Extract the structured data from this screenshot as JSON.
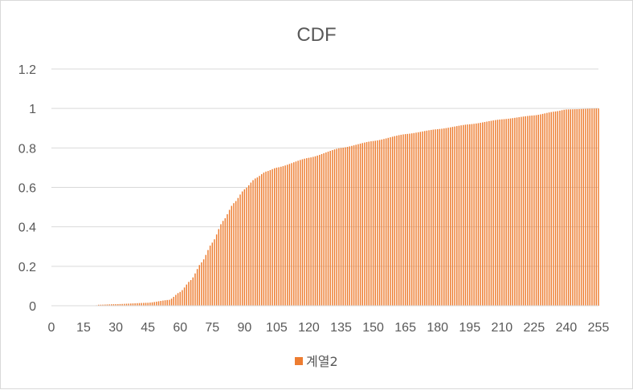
{
  "chart_data": {
    "type": "bar",
    "title": "CDF",
    "xlabel": "",
    "ylabel": "",
    "x_range": [
      0,
      255
    ],
    "ylim": [
      0,
      1.2
    ],
    "x_ticks": [
      0,
      15,
      30,
      45,
      60,
      75,
      90,
      105,
      120,
      135,
      150,
      165,
      180,
      195,
      210,
      225,
      240,
      255
    ],
    "y_ticks": [
      "0",
      "0.2",
      "0.4",
      "0.6",
      "0.8",
      "1",
      "1.2"
    ],
    "grid": true,
    "legend_position": "bottom",
    "series": [
      {
        "name": "계열2",
        "color": "#ed7d31",
        "note_points": "x positions 0..255, values estimated from gridlines",
        "key_points": [
          [
            0,
            0
          ],
          [
            15,
            0
          ],
          [
            20,
            0
          ],
          [
            22,
            0.005
          ],
          [
            30,
            0.008
          ],
          [
            45,
            0.015
          ],
          [
            55,
            0.03
          ],
          [
            60,
            0.07
          ],
          [
            65,
            0.13
          ],
          [
            70,
            0.22
          ],
          [
            75,
            0.32
          ],
          [
            80,
            0.43
          ],
          [
            85,
            0.52
          ],
          [
            90,
            0.59
          ],
          [
            95,
            0.645
          ],
          [
            100,
            0.68
          ],
          [
            105,
            0.7
          ],
          [
            120,
            0.75
          ],
          [
            135,
            0.8
          ],
          [
            150,
            0.835
          ],
          [
            165,
            0.87
          ],
          [
            180,
            0.895
          ],
          [
            195,
            0.92
          ],
          [
            210,
            0.945
          ],
          [
            225,
            0.965
          ],
          [
            235,
            0.985
          ],
          [
            240,
            0.995
          ],
          [
            255,
            1.0
          ]
        ]
      }
    ]
  }
}
